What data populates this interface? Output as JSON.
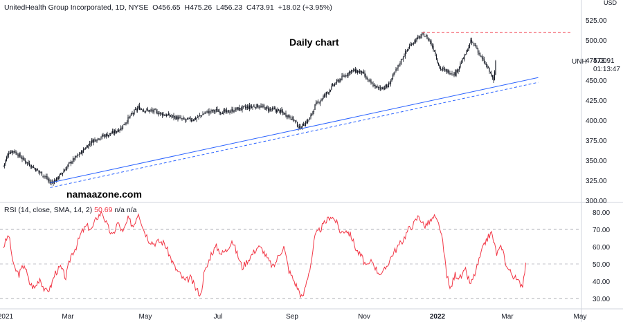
{
  "header": {
    "symbol_name": "UnitedHealth Group Incorporated, 1D, NYSE",
    "open": "O456.65",
    "high": "H475.26",
    "low": "L456.23",
    "close": "C473.91",
    "change": "+18.02 (+3.95%)"
  },
  "annotation_title": "Daily chart",
  "watermark": "namaazone.com",
  "ticker": "UNH",
  "last_price": "473.91",
  "countdown": "01:13:47",
  "currency": "USD",
  "rsi_header": {
    "label": "RSI (14, close, SMA, 14, 2)",
    "value": "50.69",
    "na1": "n/a",
    "na2": "n/a"
  },
  "colors": {
    "up": "#131722",
    "down": "#131722",
    "trendline": "#2962ff",
    "resistance": "#f23645",
    "rsi": "#f23645",
    "grid": "#e0e3eb",
    "rsi_band": "#787b86"
  },
  "chart_data": [
    {
      "type": "candlestick",
      "title": "UnitedHealth Group Incorporated, 1D, NYSE",
      "x_ticks": [
        "2021",
        "Mar",
        "May",
        "Jul",
        "Sep",
        "Nov",
        "2022",
        "Mar",
        "May"
      ],
      "y_ticks": [
        300,
        325,
        350,
        375,
        400,
        425,
        450,
        475,
        500,
        525
      ],
      "ylim": [
        300,
        550
      ],
      "series": [
        {
          "name": "UNH",
          "anchors": [
            [
              0,
              343
            ],
            [
              5,
              360
            ],
            [
              10,
              362
            ],
            [
              20,
              350
            ],
            [
              30,
              340
            ],
            [
              40,
              330
            ],
            [
              45,
              322
            ],
            [
              50,
              325
            ],
            [
              55,
              332
            ],
            [
              65,
              348
            ],
            [
              75,
              360
            ],
            [
              85,
              374
            ],
            [
              95,
              380
            ],
            [
              105,
              384
            ],
            [
              113,
              390
            ],
            [
              122,
              405
            ],
            [
              130,
              416
            ],
            [
              135,
              413
            ],
            [
              145,
              411
            ],
            [
              155,
              407
            ],
            [
              165,
              404
            ],
            [
              175,
              400
            ],
            [
              185,
              402
            ],
            [
              195,
              410
            ],
            [
              205,
              412
            ],
            [
              215,
              410
            ],
            [
              225,
              414
            ],
            [
              235,
              416
            ],
            [
              245,
              418
            ],
            [
              255,
              414
            ],
            [
              265,
              412
            ],
            [
              275,
              405
            ],
            [
              280,
              400
            ],
            [
              285,
              390
            ],
            [
              290,
              396
            ],
            [
              295,
              402
            ],
            [
              300,
              418
            ],
            [
              310,
              432
            ],
            [
              318,
              444
            ],
            [
              325,
              452
            ],
            [
              335,
              462
            ],
            [
              345,
              460
            ],
            [
              352,
              448
            ],
            [
              360,
              440
            ],
            [
              370,
              442
            ],
            [
              378,
              462
            ],
            [
              385,
              480
            ],
            [
              393,
              496
            ],
            [
              400,
              503
            ],
            [
              405,
              507
            ],
            [
              410,
              500
            ],
            [
              415,
              487
            ],
            [
              420,
              465
            ],
            [
              425,
              462
            ],
            [
              430,
              460
            ],
            [
              435,
              458
            ],
            [
              440,
              470
            ],
            [
              445,
              482
            ],
            [
              450,
              498
            ],
            [
              455,
              492
            ],
            [
              460,
              478
            ],
            [
              465,
              468
            ],
            [
              470,
              456
            ],
            [
              472,
              448
            ],
            [
              474,
              473.91
            ]
          ],
          "last": {
            "open": 456.65,
            "high": 475.26,
            "low": 456.23,
            "close": 473.91
          }
        }
      ],
      "trendline": {
        "from": [
          45,
          322
        ],
        "to": [
          555,
          455
        ]
      },
      "trendline_parallel_dashed": {
        "from": [
          45,
          316
        ],
        "to": [
          555,
          449
        ]
      },
      "resistance_level": 509.5
    },
    {
      "type": "line",
      "title": "RSI (14, close, SMA, 14, 2)",
      "y_ticks": [
        30,
        40,
        50,
        60,
        70,
        80
      ],
      "ylim": [
        27,
        83
      ],
      "bands": [
        30,
        50,
        70
      ],
      "series": [
        {
          "name": "RSI",
          "anchors": [
            [
              0,
              60
            ],
            [
              5,
              67
            ],
            [
              10,
              48
            ],
            [
              15,
              44
            ],
            [
              20,
              50
            ],
            [
              25,
              39
            ],
            [
              30,
              36
            ],
            [
              35,
              42
            ],
            [
              40,
              34
            ],
            [
              45,
              36
            ],
            [
              50,
              45
            ],
            [
              55,
              48
            ],
            [
              60,
              42
            ],
            [
              65,
              55
            ],
            [
              70,
              60
            ],
            [
              75,
              68
            ],
            [
              80,
              72
            ],
            [
              85,
              70
            ],
            [
              90,
              77
            ],
            [
              95,
              80
            ],
            [
              100,
              72
            ],
            [
              105,
              66
            ],
            [
              110,
              74
            ],
            [
              115,
              68
            ],
            [
              120,
              76
            ],
            [
              125,
              72
            ],
            [
              130,
              80
            ],
            [
              135,
              70
            ],
            [
              140,
              64
            ],
            [
              145,
              62
            ],
            [
              150,
              63
            ],
            [
              155,
              62
            ],
            [
              160,
              55
            ],
            [
              165,
              48
            ],
            [
              170,
              44
            ],
            [
              175,
              40
            ],
            [
              180,
              42
            ],
            [
              185,
              36
            ],
            [
              190,
              32
            ],
            [
              193,
              44
            ],
            [
              197,
              50
            ],
            [
              200,
              56
            ],
            [
              205,
              60
            ],
            [
              210,
              56
            ],
            [
              215,
              58
            ],
            [
              220,
              64
            ],
            [
              225,
              56
            ],
            [
              230,
              48
            ],
            [
              235,
              52
            ],
            [
              240,
              56
            ],
            [
              245,
              60
            ],
            [
              250,
              58
            ],
            [
              255,
              52
            ],
            [
              260,
              48
            ],
            [
              265,
              55
            ],
            [
              270,
              60
            ],
            [
              275,
              46
            ],
            [
              280,
              40
            ],
            [
              285,
              34
            ],
            [
              288,
              30
            ],
            [
              292,
              40
            ],
            [
              296,
              50
            ],
            [
              300,
              66
            ],
            [
              305,
              70
            ],
            [
              310,
              74
            ],
            [
              315,
              78
            ],
            [
              320,
              75
            ],
            [
              325,
              68
            ],
            [
              330,
              70
            ],
            [
              335,
              66
            ],
            [
              340,
              58
            ],
            [
              345,
              54
            ],
            [
              350,
              48
            ],
            [
              355,
              52
            ],
            [
              360,
              46
            ],
            [
              365,
              44
            ],
            [
              370,
              50
            ],
            [
              375,
              56
            ],
            [
              380,
              60
            ],
            [
              385,
              64
            ],
            [
              390,
              70
            ],
            [
              395,
              73
            ],
            [
              400,
              78
            ],
            [
              405,
              72
            ],
            [
              410,
              74
            ],
            [
              415,
              77
            ],
            [
              420,
              72
            ],
            [
              423,
              62
            ],
            [
              427,
              44
            ],
            [
              430,
              35
            ],
            [
              435,
              44
            ],
            [
              440,
              42
            ],
            [
              445,
              46
            ],
            [
              450,
              38
            ],
            [
              455,
              46
            ],
            [
              460,
              56
            ],
            [
              465,
              64
            ],
            [
              470,
              68
            ],
            [
              475,
              56
            ],
            [
              480,
              60
            ],
            [
              485,
              48
            ],
            [
              490,
              44
            ],
            [
              495,
              40
            ],
            [
              500,
              38
            ],
            [
              503,
              50.69
            ]
          ]
        }
      ]
    }
  ]
}
